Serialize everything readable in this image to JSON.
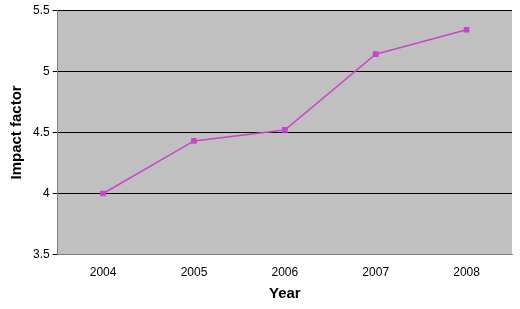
{
  "chart_data": {
    "type": "line",
    "categories": [
      "2004",
      "2005",
      "2006",
      "2007",
      "2008"
    ],
    "values": [
      4.0,
      4.43,
      4.52,
      5.14,
      5.34
    ],
    "color": "#cc44cc",
    "marker": "square",
    "line_style": "solid",
    "x_label": "Year",
    "y_label": "Impact factor",
    "ylim": [
      3.5,
      5.5
    ],
    "yticks": [
      3.5,
      4,
      4.5,
      5,
      5.5
    ],
    "grid": true
  }
}
